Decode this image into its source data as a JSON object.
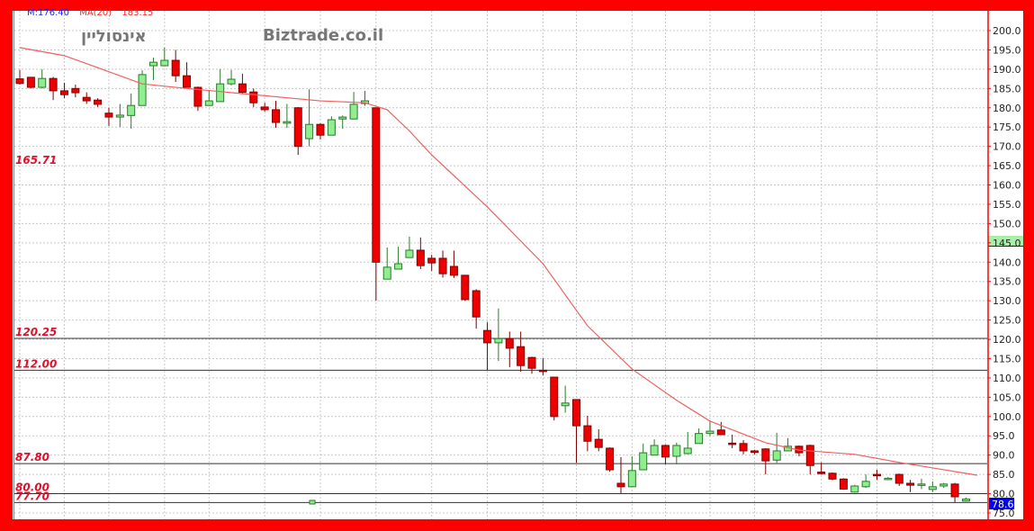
{
  "chart_data": {
    "type": "candlestick",
    "title": "אינסוליין",
    "watermark": "Biztrade.co.il",
    "legend": [
      {
        "text": "M:176.40",
        "color": "#2020ff"
      },
      {
        "text": "MA(20)",
        "color": "#ff2020"
      },
      {
        "text": "183.15",
        "color": "#ff2020"
      }
    ],
    "ylim": [
      75,
      200
    ],
    "y_ticks": [
      "200.0",
      "195.0",
      "190.0",
      "185.0",
      "180.0",
      "175.0",
      "170.0",
      "165.0",
      "160.0",
      "155.0",
      "150.0",
      "145.0",
      "140.0",
      "135.0",
      "130.0",
      "125.0",
      "120.0",
      "115.0",
      "110.0",
      "105.0",
      "100.0",
      "95.0",
      "90.0",
      "85.0",
      "80.0",
      "75.0"
    ],
    "grid": true,
    "last_price": "78.6",
    "colors": {
      "up": "#90ee90",
      "down": "#ee0000",
      "ma": "#f06060",
      "frame": "#ff0000",
      "last_price_bg": "#0000ee"
    },
    "levels": [
      {
        "label": "165.71",
        "value": 165.71,
        "line": false
      },
      {
        "label": "120.25",
        "value": 120.25,
        "line": true
      },
      {
        "label": "112.00",
        "value": 112.0,
        "line": true
      },
      {
        "label": "87.80",
        "value": 87.8,
        "line": true
      },
      {
        "label": "80.00",
        "value": 80.0,
        "line": true
      },
      {
        "label": "77.70",
        "value": 77.7,
        "line": true
      }
    ],
    "candles": [
      [
        187.5,
        186.3,
        189.8,
        186
      ],
      [
        187.9,
        185.3,
        188,
        185
      ],
      [
        185.3,
        187.6,
        190,
        185
      ],
      [
        187.6,
        184.4,
        188,
        182
      ],
      [
        184.4,
        183.4,
        186.5,
        182.5
      ],
      [
        185,
        183.9,
        186,
        182.7
      ],
      [
        182.7,
        181.8,
        184,
        181
      ],
      [
        182,
        180.9,
        182.5,
        180.2
      ],
      [
        178.6,
        177.6,
        180,
        175.3
      ],
      [
        177.6,
        178.1,
        181,
        175
      ],
      [
        178,
        180.6,
        183.7,
        174.6
      ],
      [
        180.6,
        188.6,
        189.7,
        180.6
      ],
      [
        190.9,
        191.8,
        193,
        187.2
      ],
      [
        190.9,
        192.3,
        195.6,
        190.9
      ],
      [
        192.3,
        188.3,
        195,
        186.7
      ],
      [
        188.3,
        185.3,
        191.8,
        185.3
      ],
      [
        185.3,
        180.4,
        185.5,
        179.2
      ],
      [
        180.6,
        181.8,
        184.6,
        180.5
      ],
      [
        181.6,
        186.2,
        190,
        181.6
      ],
      [
        186.2,
        187.4,
        189.8,
        185.8
      ],
      [
        186.2,
        184,
        188.8,
        183.5
      ],
      [
        184.1,
        181.3,
        185,
        180.2
      ],
      [
        180.2,
        179.5,
        181.3,
        179
      ],
      [
        179.5,
        176.2,
        181.8,
        174.8
      ],
      [
        176,
        176.4,
        181,
        174.8
      ],
      [
        180,
        170,
        180.2,
        167.8
      ],
      [
        172,
        175.7,
        184.8,
        170
      ],
      [
        175.7,
        172.9,
        176,
        171.8
      ],
      [
        172.9,
        176.9,
        177.8,
        172.9
      ],
      [
        177.1,
        177.6,
        178,
        174.6
      ],
      [
        177.1,
        180.9,
        184.1,
        177
      ],
      [
        181.1,
        181.8,
        184.4,
        180.5
      ],
      [
        180,
        140,
        180,
        130
      ],
      [
        135.6,
        138.7,
        143.8,
        135.6
      ],
      [
        138.2,
        139.6,
        144,
        138.2
      ],
      [
        141.2,
        143.1,
        146.6,
        141.2
      ],
      [
        143.1,
        139.1,
        146.4,
        138.2
      ],
      [
        141,
        139.8,
        141.9,
        137.7
      ],
      [
        141,
        137,
        143,
        136
      ],
      [
        138.9,
        136.6,
        143,
        135.9
      ],
      [
        136.6,
        130.3,
        136.6,
        130
      ],
      [
        132.6,
        125.8,
        133,
        122.8
      ],
      [
        122.3,
        119.1,
        124.4,
        112
      ],
      [
        119.1,
        120.2,
        128,
        114.4
      ],
      [
        120.2,
        117.7,
        122,
        112.8
      ],
      [
        118.1,
        113.2,
        122,
        111.6
      ],
      [
        115.3,
        112.5,
        115.5,
        111.1
      ],
      [
        112,
        111.8,
        115.1,
        110.7
      ],
      [
        110.2,
        100,
        110.2,
        99
      ],
      [
        102.8,
        103.5,
        108,
        101
      ],
      [
        104.4,
        97.6,
        104.4,
        88
      ],
      [
        97.6,
        93.6,
        100.2,
        91
      ],
      [
        94.1,
        92,
        96.7,
        91
      ],
      [
        91.8,
        86.2,
        92,
        85.7
      ],
      [
        82.7,
        81.8,
        89.5,
        80.1
      ],
      [
        81.8,
        86,
        89.7,
        81.8
      ],
      [
        86.2,
        90.6,
        93,
        86.2
      ],
      [
        90,
        92.5,
        94.1,
        90
      ],
      [
        92.5,
        89.5,
        92.7,
        87.6
      ],
      [
        89.7,
        92.5,
        93.2,
        87.6
      ],
      [
        90.4,
        91.8,
        96,
        90.2
      ],
      [
        93,
        95.6,
        96.9,
        93
      ],
      [
        95.6,
        96.2,
        99,
        95
      ],
      [
        96.5,
        95.3,
        98.6,
        95.3
      ],
      [
        93.1,
        92.9,
        95.3,
        91.8
      ],
      [
        93,
        91.1,
        93.9,
        90.2
      ],
      [
        91.1,
        90.7,
        91.4,
        90.2
      ],
      [
        91.6,
        88.5,
        91.8,
        85
      ],
      [
        88.7,
        91.1,
        95.8,
        88
      ],
      [
        91.1,
        92.3,
        94.4,
        91
      ],
      [
        92.3,
        90.6,
        92.5,
        89.7
      ],
      [
        92.5,
        87.3,
        92.7,
        85
      ],
      [
        85.6,
        85.2,
        88.1,
        85
      ],
      [
        85.3,
        83.8,
        85.5,
        83.5
      ],
      [
        83.8,
        81.2,
        84,
        81
      ],
      [
        80.4,
        82,
        82.3,
        80.3
      ],
      [
        81.8,
        83.2,
        85,
        81.5
      ],
      [
        85,
        84.7,
        86.2,
        83.6
      ],
      [
        83.9,
        84,
        84.3,
        83.6
      ],
      [
        85,
        82.7,
        85.2,
        82
      ],
      [
        82.7,
        82.2,
        83.6,
        80.4
      ],
      [
        82.2,
        82.5,
        83.9,
        81.2
      ],
      [
        81.1,
        81.8,
        83.2,
        80.4
      ],
      [
        82,
        82.5,
        82.8,
        81.5
      ],
      [
        82.5,
        79.2,
        82.8,
        77.8
      ],
      [
        78.1,
        78.6,
        79,
        78
      ]
    ],
    "candle_fields": [
      "open",
      "close",
      "high",
      "low"
    ],
    "ma20": [
      [
        1,
        195.6
      ],
      [
        5,
        193.5
      ],
      [
        8,
        190.4
      ],
      [
        12,
        186.2
      ],
      [
        16,
        185
      ],
      [
        28,
        181.8
      ],
      [
        32,
        181.3
      ],
      [
        34,
        179.5
      ],
      [
        36,
        174
      ],
      [
        38,
        167.8
      ],
      [
        43,
        154.3
      ],
      [
        48,
        139.6
      ],
      [
        52,
        123.5
      ],
      [
        56,
        112.3
      ],
      [
        60,
        104.2
      ],
      [
        63,
        98.8
      ],
      [
        68,
        93.2
      ],
      [
        71,
        91.3
      ],
      [
        76,
        90.2
      ],
      [
        80,
        88.1
      ],
      [
        87,
        84.8
      ]
    ]
  }
}
